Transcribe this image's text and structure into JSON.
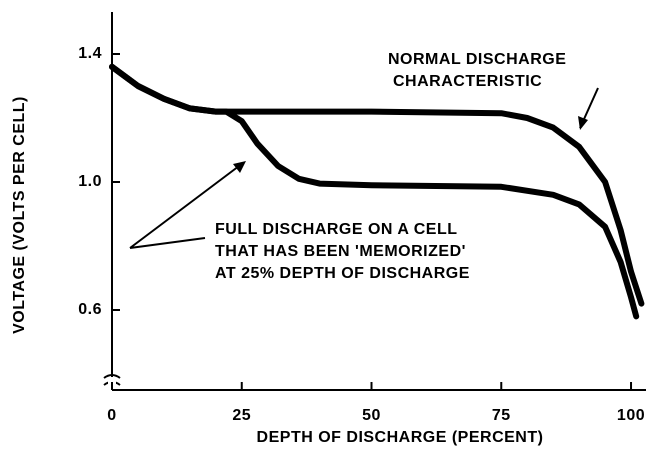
{
  "chart_data": {
    "type": "line",
    "xlabel": "DEPTH OF DISCHARGE (PERCENT)",
    "ylabel": "VOLTAGE (VOLTS PER CELL)",
    "annotations": [
      {
        "lines": [
          "NORMAL DISCHARGE",
          "CHARACTERISTIC"
        ]
      },
      {
        "lines": [
          "FULL DISCHARGE ON A CELL",
          "THAT HAS BEEN 'MEMORIZED'",
          "AT 25% DEPTH OF DISCHARGE"
        ]
      }
    ],
    "xlim": [
      0,
      103
    ],
    "xticks": [
      0,
      25,
      50,
      75,
      100
    ],
    "ylim": [
      0.35,
      1.52
    ],
    "yticks": [
      0.6,
      {
        "value": 1,
        "label": "1.0"
      },
      1.4
    ],
    "series": [
      {
        "color": "#000000",
        "x": [
          0,
          5,
          10,
          15,
          20,
          25,
          50,
          75,
          80,
          85,
          90,
          95,
          98,
          100,
          102
        ],
        "values": [
          1.36,
          1.3,
          1.26,
          1.23,
          1.22,
          1.22,
          1.22,
          1.215,
          1.2,
          1.17,
          1.11,
          1.0,
          0.85,
          0.72,
          0.62
        ]
      },
      {
        "color": "#000000",
        "x": [
          0,
          5,
          10,
          15,
          20,
          22,
          25,
          28,
          32,
          36,
          40,
          50,
          75,
          85,
          90,
          95,
          98,
          100,
          101
        ],
        "values": [
          1.36,
          1.3,
          1.26,
          1.23,
          1.22,
          1.22,
          1.19,
          1.12,
          1.05,
          1.01,
          0.995,
          0.99,
          0.985,
          0.96,
          0.93,
          0.86,
          0.75,
          0.64,
          0.58
        ]
      }
    ]
  }
}
